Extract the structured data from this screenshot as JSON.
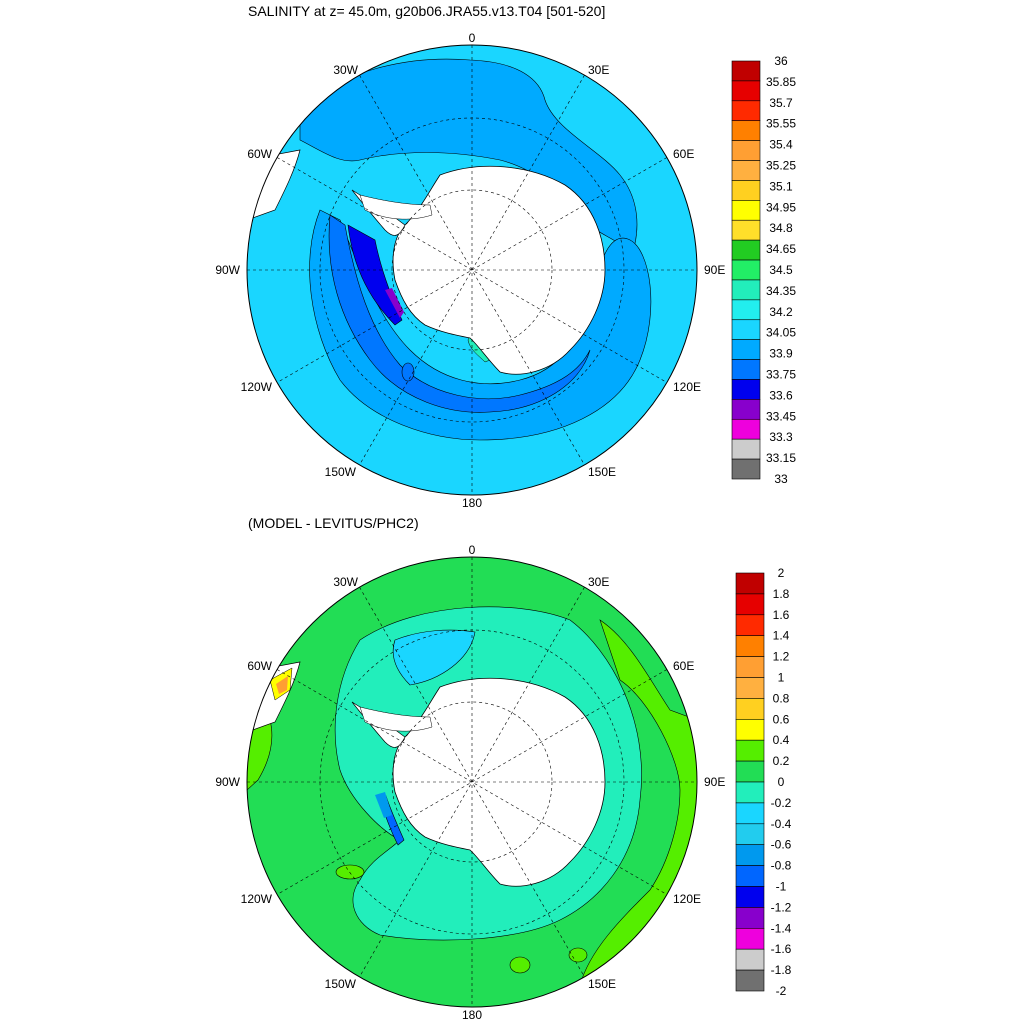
{
  "panels": [
    {
      "title": "SALINITY at z=  45.0m, g20b06.JRA55.v13.T04 [501-520]",
      "lon_labels": {
        "top": "0",
        "top_left": "30W",
        "top_right": "30E",
        "upper_left": "60W",
        "upper_right": "60E",
        "left": "90W",
        "right": "90E",
        "lower_left": "120W",
        "lower_right": "120E",
        "bottom_left": "150W",
        "bottom_right": "150E",
        "bottom": "180"
      },
      "colorbar": {
        "labels": [
          "36",
          "35.85",
          "35.7",
          "35.55",
          "35.4",
          "35.25",
          "35.1",
          "34.95",
          "34.8",
          "34.65",
          "34.5",
          "34.35",
          "34.2",
          "34.05",
          "33.9",
          "33.75",
          "33.6",
          "33.45",
          "33.3",
          "33.15",
          "33"
        ],
        "colors": [
          "#c00000",
          "#e60000",
          "#ff2a00",
          "#ff8000",
          "#ff9f33",
          "#ffb040",
          "#ffd020",
          "#ffff00",
          "#ffdf2a",
          "#22cc22",
          "#22ee66",
          "#22eebb",
          "#22eeee",
          "#1ad6ff",
          "#00aaff",
          "#0077ff",
          "#0000ee",
          "#8800cc",
          "#ee00dd",
          "#cccccc",
          "#707070"
        ]
      }
    },
    {
      "title": "(MODEL - LEVITUS/PHC2)",
      "lon_labels": {
        "top": "0",
        "top_left": "30W",
        "top_right": "30E",
        "upper_left": "60W",
        "upper_right": "60E",
        "left": "90W",
        "right": "90E",
        "lower_left": "120W",
        "lower_right": "120E",
        "bottom_left": "150W",
        "bottom_right": "150E",
        "bottom": "180"
      },
      "colorbar": {
        "labels": [
          "2",
          "1.8",
          "1.6",
          "1.4",
          "1.2",
          "1",
          "0.8",
          "0.6",
          "0.4",
          "0.2",
          "0",
          "-0.2",
          "-0.4",
          "-0.6",
          "-0.8",
          "-1",
          "-1.2",
          "-1.4",
          "-1.6",
          "-1.8",
          "-2"
        ],
        "colors": [
          "#c00000",
          "#e60000",
          "#ff2a00",
          "#ff8000",
          "#ff9f33",
          "#ffb040",
          "#ffd020",
          "#ffff00",
          "#55ee00",
          "#22dd55",
          "#22eebb",
          "#1ad6ff",
          "#22ccee",
          "#0099ee",
          "#0066ff",
          "#0000ee",
          "#8800cc",
          "#ee00dd",
          "#cccccc",
          "#707070"
        ]
      }
    }
  ]
}
